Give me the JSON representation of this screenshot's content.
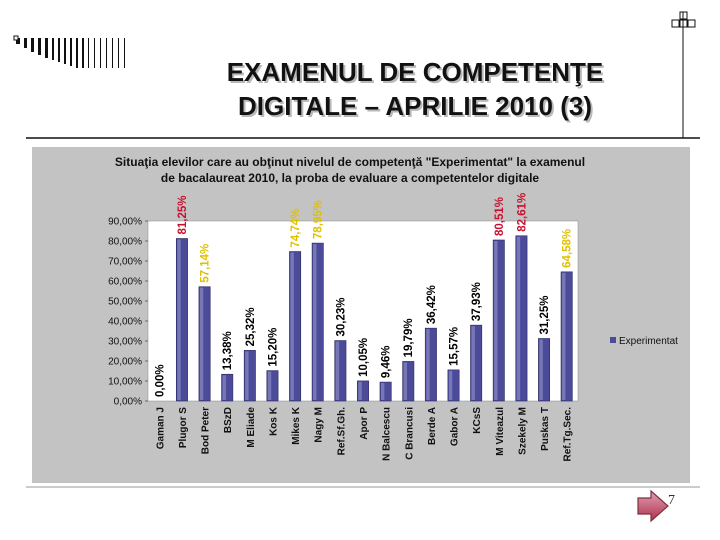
{
  "slide": {
    "title_line1": "EXAMENUL DE COMPETENŢE",
    "title_line2": "DIGITALE – APRILIE 2010 (3)",
    "page_number": "7"
  },
  "colors": {
    "bar_fill": "#4b4b9a",
    "bar_highlight": "#9d9dd0",
    "plot_background": "#ffffff",
    "chart_background": "#c3c3c3",
    "label_red": "#c8102e",
    "label_yellow": "#e0c000",
    "label_black": "#000000",
    "nav_button": "#c0506a"
  },
  "chart_data": {
    "type": "bar",
    "title": "Situaţia elevilor care au obţinut nivelul de competenţă \"Experimentat\" la examenul de bacalaureat 2010, la proba de evaluare a competenţelor digitale",
    "title_line1": "Situaţia elevilor care au obţinut nivelul de competenţă \"Experimentat\" la examenul",
    "title_line2": "de bacalaureat 2010, la proba de evaluare a competentelor digitale",
    "legend": "Experimentat",
    "legend_position": "right",
    "ylim": [
      0,
      90
    ],
    "yticks": [
      "0,00%",
      "10,00%",
      "20,00%",
      "30,00%",
      "40,00%",
      "50,00%",
      "60,00%",
      "70,00%",
      "80,00%",
      "90,00%"
    ],
    "grid": false,
    "categories": [
      "Gaman J",
      "Plugor S",
      "Bod Peter",
      "BSzD",
      "M Eliade",
      "Kos K",
      "Mikes K",
      "Nagy M",
      "Ref.Sf.Gh.",
      "Apor P",
      "N Balcescu",
      "C Brancusi",
      "Berde A",
      "Gabor A",
      "KCsS",
      "M Viteazul",
      "Szekely M",
      "Puskas T",
      "Ref.Tg.Sec."
    ],
    "values": [
      0.0,
      81.25,
      57.14,
      13.38,
      25.32,
      15.2,
      74.74,
      78.95,
      30.23,
      10.05,
      9.46,
      19.79,
      36.42,
      15.57,
      37.93,
      80.51,
      82.61,
      31.25,
      64.58
    ],
    "value_labels": [
      "0,00%",
      "81,25%",
      "57,14%",
      "13,38%",
      "25,32%",
      "15,20%",
      "74,74%",
      "78,95%",
      "30,23%",
      "10,05%",
      "9,46%",
      "19,79%",
      "36,42%",
      "15,57%",
      "37,93%",
      "80,51%",
      "82,61%",
      "31,25%",
      "64,58%"
    ],
    "label_colors": [
      "black",
      "red",
      "yellow",
      "black",
      "black",
      "black",
      "yellow",
      "yellow",
      "black",
      "black",
      "black",
      "black",
      "black",
      "black",
      "black",
      "red",
      "red",
      "black",
      "yellow"
    ]
  }
}
